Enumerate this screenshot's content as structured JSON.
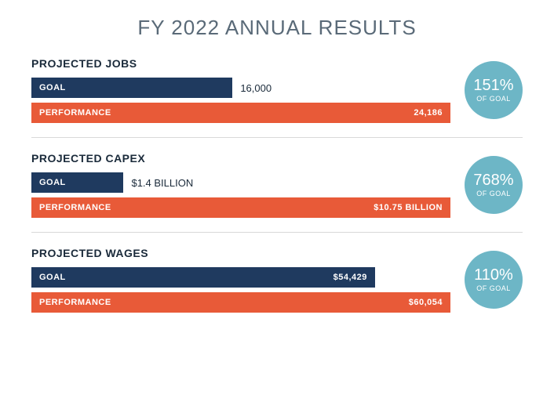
{
  "title": "FY 2022 ANNUAL RESULTS",
  "title_fontsize": 26,
  "title_color": "#5a6a78",
  "background_color": "#ffffff",
  "divider_color": "#d9d9d9",
  "badge_color": "#6db6c6",
  "goal_bar_color": "#1f3a5f",
  "performance_bar_color": "#e85a38",
  "bar_text_color": "#ffffff",
  "value_outside_color": "#1a2a3a",
  "section_title_color": "#1a2a3a",
  "metrics": [
    {
      "title": "PROJECTED JOBS",
      "goal_label": "GOAL",
      "goal_value": "16,000",
      "goal_value_inside": false,
      "goal_bar_width_pct": 48,
      "performance_label": "PERFORMANCE",
      "performance_value": "24,186",
      "performance_value_inside": true,
      "performance_bar_width_pct": 100,
      "badge_pct": "151%",
      "badge_sub": "OF GOAL"
    },
    {
      "title": "PROJECTED CAPEX",
      "goal_label": "GOAL",
      "goal_value": "$1.4 BILLION",
      "goal_value_inside": false,
      "goal_bar_width_pct": 22,
      "performance_label": "PERFORMANCE",
      "performance_value": "$10.75 BILLION",
      "performance_value_inside": true,
      "performance_bar_width_pct": 100,
      "badge_pct": "768%",
      "badge_sub": "OF GOAL"
    },
    {
      "title": "PROJECTED WAGES",
      "goal_label": "GOAL",
      "goal_value": "$54,429",
      "goal_value_inside": true,
      "goal_bar_width_pct": 82,
      "performance_label": "PERFORMANCE",
      "performance_value": "$60,054",
      "performance_value_inside": true,
      "performance_bar_width_pct": 100,
      "badge_pct": "110%",
      "badge_sub": "OF GOAL"
    }
  ]
}
